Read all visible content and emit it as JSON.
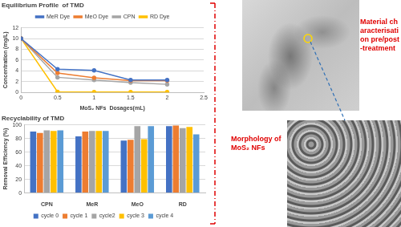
{
  "chart_data": [
    {
      "type": "line",
      "title": "Equilibrium Profile  of TMD",
      "x_label": "MoS₂ NFs  Dosages(mL)",
      "y_label": "Concentration (mg/L)",
      "x": [
        0,
        0.5,
        1,
        1.5,
        2
      ],
      "series": [
        {
          "name": "MeR Dye",
          "color": "#4472c4",
          "values": [
            10,
            4.3,
            4.1,
            2.3,
            2.3
          ]
        },
        {
          "name": "MeO Dye",
          "color": "#ed7d31",
          "values": [
            10,
            3.6,
            2.7,
            2.2,
            2.2
          ]
        },
        {
          "name": "CPN",
          "color": "#a5a5a5",
          "values": [
            10,
            2.8,
            2.3,
            1.8,
            1.5
          ]
        },
        {
          "name": "RD Dye",
          "color": "#ffc000",
          "values": [
            10,
            0.1,
            0.05,
            0.05,
            0.05
          ]
        }
      ],
      "xlim": [
        0,
        2.5
      ],
      "xticks": [
        0,
        0.5,
        1,
        1.5,
        2,
        2.5
      ],
      "ylim": [
        0,
        12
      ],
      "yticks": [
        0,
        2,
        4,
        6,
        8,
        10,
        12
      ],
      "grid": true,
      "legend": "top",
      "marker": "circle"
    },
    {
      "type": "bar",
      "title": "Recyclability of TMD",
      "y_label": "Removal Efficiency (%)",
      "categories": [
        "CPN",
        "MeR",
        "MeO",
        "RD"
      ],
      "series": [
        {
          "name": "cycle 0",
          "color": "#4472c4",
          "values": [
            90,
            83,
            77,
            98
          ]
        },
        {
          "name": "cycle 1",
          "color": "#ed7d31",
          "values": [
            88,
            90,
            78,
            99
          ]
        },
        {
          "name": "cycle2",
          "color": "#a5a5a5",
          "values": [
            92,
            91,
            98,
            95
          ]
        },
        {
          "name": "cycle 3",
          "color": "#ffc000",
          "values": [
            91,
            91,
            79,
            97
          ]
        },
        {
          "name": "cycle 4",
          "color": "#5b9bd5",
          "values": [
            92,
            91,
            98,
            86
          ]
        }
      ],
      "ylim": [
        0,
        100
      ],
      "yticks": [
        0,
        20,
        40,
        60,
        80,
        100
      ],
      "grid": true,
      "legend": "bottom"
    }
  ],
  "figure_texts": {
    "characterisation": "Material characterisation pre/post-treatment",
    "morphology": "Morphology of MoS₂ NFs"
  }
}
